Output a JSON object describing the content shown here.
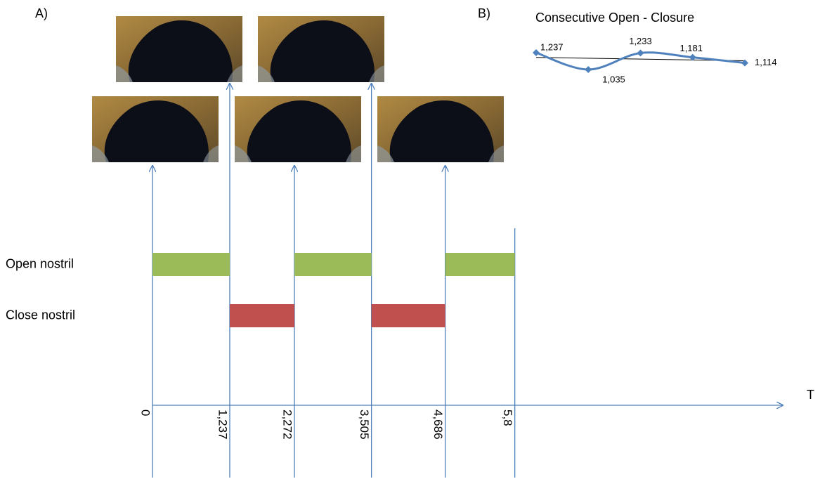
{
  "chart_data": [
    {
      "type": "timeline",
      "label": "A)",
      "axis_label": "T",
      "xlim": [
        0,
        10.1
      ],
      "xticks": [
        0,
        {
          "value": 1.237,
          "label": "1,237"
        },
        {
          "value": 2.272,
          "label": "2,272"
        },
        {
          "value": 3.505,
          "label": "3,505"
        },
        {
          "value": 4.686,
          "label": "4,686"
        },
        {
          "value": 5.8,
          "label": "5,8"
        }
      ],
      "series": [
        {
          "name": "Open nostril",
          "color": "#9bbb59",
          "intervals": [
            [
              0,
              1.237
            ],
            [
              2.272,
              3.505
            ],
            [
              4.686,
              5.8
            ]
          ]
        },
        {
          "name": "Close nostril",
          "color": "#c0504d",
          "intervals": [
            [
              1.237,
              2.272
            ],
            [
              3.505,
              4.686
            ]
          ]
        }
      ]
    },
    {
      "type": "line",
      "label": "B)",
      "title": "Consecutive Open - Closure",
      "categories": [
        null,
        null,
        null,
        null,
        null
      ],
      "series": [
        {
          "name": null,
          "color": "#4f81bd",
          "values": [
            1.237,
            1.035,
            1.233,
            1.181,
            1.114
          ],
          "value_labels": [
            "1,237",
            "1,035",
            "1,233",
            "1,181",
            "1,114"
          ]
        }
      ],
      "trendline": true
    }
  ]
}
